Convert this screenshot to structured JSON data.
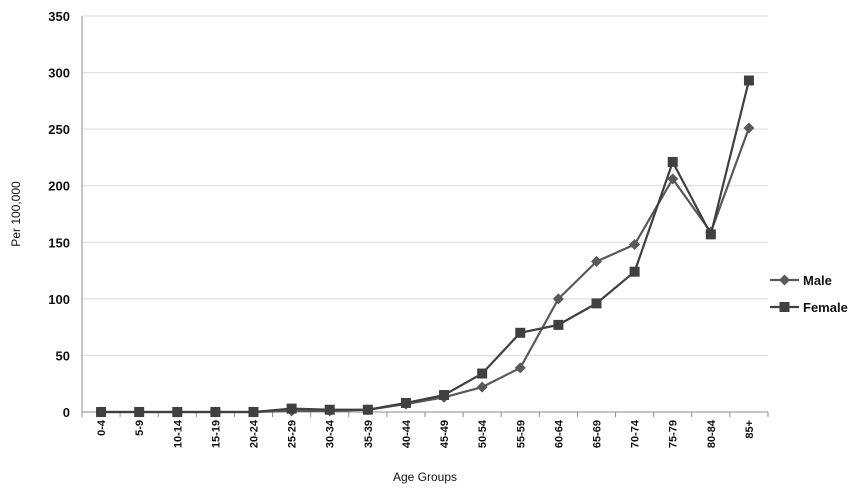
{
  "chart_data": {
    "type": "line",
    "title": "",
    "xlabel": "Age Groups",
    "ylabel": "Per 100,000",
    "ylim": [
      0,
      350
    ],
    "yticks": [
      0,
      50,
      100,
      150,
      200,
      250,
      300,
      350
    ],
    "grid": true,
    "legend_position": "right",
    "categories": [
      "0-4",
      "5-9",
      "10-14",
      "15-19",
      "20-24",
      "25-29",
      "30-34",
      "35-39",
      "40-44",
      "45-49",
      "50-54",
      "55-59",
      "60-64",
      "65-69",
      "70-74",
      "75-79",
      "80-84",
      "85+"
    ],
    "series": [
      {
        "name": "Male",
        "marker": "diamond",
        "color": "#595959",
        "values": [
          0,
          0,
          0,
          0,
          0,
          1,
          1,
          2,
          7,
          13,
          22,
          39,
          100,
          133,
          148,
          206,
          159,
          251
        ]
      },
      {
        "name": "Female",
        "marker": "square",
        "color": "#404040",
        "values": [
          0,
          0,
          0,
          0,
          0,
          3,
          2,
          2,
          8,
          15,
          34,
          70,
          77,
          96,
          124,
          221,
          157,
          293
        ]
      }
    ]
  }
}
